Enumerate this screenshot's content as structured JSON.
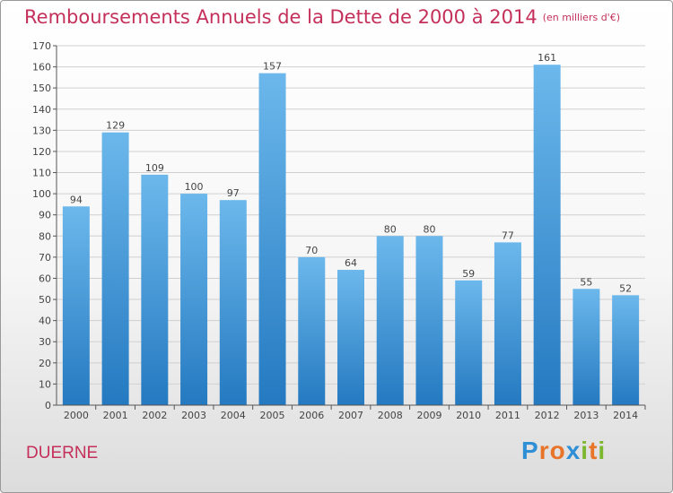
{
  "header": {
    "title": "Remboursements Annuels de la Dette de 2000 à 2014",
    "subtitle": "(en milliers d'€)"
  },
  "commune": "DUERNE",
  "logo": {
    "text": "Proxiti",
    "letters": [
      {
        "ch": "P",
        "color": "#2f8fd6"
      },
      {
        "ch": "r",
        "color": "#e8742a"
      },
      {
        "ch": "o",
        "color": "#e8742a"
      },
      {
        "ch": "x",
        "color": "#2f8fd6"
      },
      {
        "ch": "i",
        "color": "#7cb82f"
      },
      {
        "ch": "t",
        "color": "#e8742a"
      },
      {
        "ch": "i",
        "color": "#7cb82f"
      }
    ]
  },
  "chart_data": {
    "type": "bar",
    "title": "Remboursements Annuels de la Dette de 2000 à 2014",
    "subtitle": "(en milliers d'€)",
    "categories": [
      "2000",
      "2001",
      "2002",
      "2003",
      "2004",
      "2005",
      "2006",
      "2007",
      "2008",
      "2009",
      "2010",
      "2011",
      "2012",
      "2013",
      "2014"
    ],
    "values": [
      94,
      129,
      109,
      100,
      97,
      157,
      70,
      64,
      80,
      80,
      59,
      77,
      161,
      55,
      52
    ],
    "ylim": [
      0,
      170
    ],
    "yticks": [
      0,
      10,
      20,
      30,
      40,
      50,
      60,
      70,
      80,
      90,
      100,
      110,
      120,
      130,
      140,
      150,
      160,
      170
    ],
    "grid": true,
    "colors": {
      "bar_light": "#6cb8ec",
      "bar_dark": "#2479c0",
      "grid": "#d0d0d0",
      "axis": "#555555",
      "text": "#444444"
    }
  }
}
